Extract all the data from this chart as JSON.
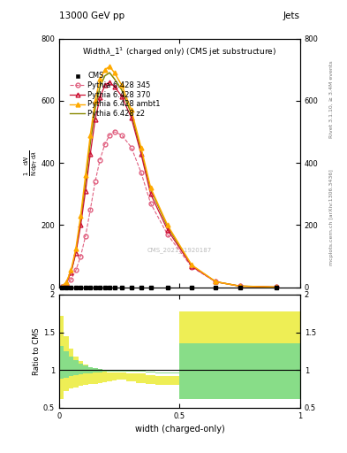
{
  "title_top": "13000 GeV pp",
  "title_right": "Jets",
  "plot_title": "Widthλ_1¹ (charged only) (CMS jet substructure)",
  "xlabel": "width (charged-only)",
  "ylabel_lines": [
    "mathrm d²N",
    "mathrm d p_T mathrm dλ"
  ],
  "ylabel_ratio": "Ratio to CMS",
  "right_label_top": "Rivet 3.1.10, ≥ 3.4M events",
  "right_label_bot": "mcplots.cern.ch [arXiv:1306.3436]",
  "watermark": "CMS_2021_I1920187",
  "x_bins": [
    0.0,
    0.02,
    0.04,
    0.06,
    0.08,
    0.1,
    0.12,
    0.14,
    0.16,
    0.18,
    0.2,
    0.22,
    0.24,
    0.28,
    0.32,
    0.36,
    0.4,
    0.5,
    0.6,
    0.7,
    0.8,
    1.0
  ],
  "cms_data_y": [
    0.0,
    0.0,
    0.0,
    0.0,
    0.0,
    0.0,
    0.0,
    0.0,
    0.0,
    0.0,
    0.0,
    0.0,
    0.0,
    0.0,
    0.0,
    0.0,
    0.0,
    0.0,
    0.0,
    0.0,
    0.0
  ],
  "p6_345": [
    1.5,
    8,
    25,
    55,
    100,
    165,
    250,
    340,
    410,
    460,
    490,
    500,
    490,
    450,
    370,
    270,
    170,
    65,
    18,
    4,
    0.8
  ],
  "p6_370": [
    2,
    14,
    48,
    110,
    200,
    310,
    430,
    540,
    610,
    650,
    660,
    645,
    615,
    545,
    430,
    300,
    185,
    68,
    18,
    4,
    0.8
  ],
  "p6_ambt1": [
    2,
    16,
    55,
    125,
    230,
    360,
    490,
    600,
    670,
    700,
    710,
    690,
    650,
    570,
    450,
    320,
    200,
    72,
    18,
    4,
    0.8
  ],
  "p6_z2": [
    2,
    14,
    50,
    115,
    215,
    340,
    465,
    575,
    645,
    680,
    690,
    670,
    635,
    558,
    440,
    315,
    195,
    70,
    18,
    4,
    0.8
  ],
  "ratio_yellow_lo": [
    0.62,
    0.72,
    0.75,
    0.77,
    0.79,
    0.8,
    0.81,
    0.82,
    0.83,
    0.84,
    0.85,
    0.86,
    0.87,
    0.85,
    0.83,
    0.82,
    0.8,
    0.62,
    0.62,
    0.62,
    0.62
  ],
  "ratio_yellow_hi": [
    1.72,
    1.45,
    1.28,
    1.18,
    1.12,
    1.07,
    1.04,
    1.02,
    1.0,
    0.98,
    0.97,
    0.97,
    0.97,
    0.96,
    0.95,
    0.93,
    0.92,
    1.78,
    1.78,
    1.78,
    1.78
  ],
  "ratio_green_lo": [
    0.88,
    0.9,
    0.92,
    0.93,
    0.94,
    0.95,
    0.96,
    0.97,
    0.97,
    0.98,
    0.98,
    0.98,
    0.98,
    0.98,
    0.98,
    0.97,
    0.96,
    0.62,
    0.62,
    0.62,
    0.62
  ],
  "ratio_green_hi": [
    1.32,
    1.25,
    1.18,
    1.13,
    1.09,
    1.06,
    1.04,
    1.02,
    1.01,
    1.0,
    0.99,
    0.99,
    0.99,
    0.99,
    0.99,
    0.98,
    0.97,
    1.35,
    1.35,
    1.35,
    1.35
  ],
  "cms_color": "#000000",
  "p345_color": "#e06080",
  "p370_color": "#cc1133",
  "pambt1_color": "#ffaa00",
  "pz2_color": "#888800",
  "ratio_yellow_color": "#eeee55",
  "ratio_green_color": "#88dd88",
  "bg_color": "#ffffff",
  "xlim": [
    0.0,
    1.0
  ],
  "ylim_main": [
    0,
    800
  ],
  "ylim_ratio": [
    0.5,
    2.0
  ],
  "yticks_main": [
    0,
    200,
    400,
    600,
    800
  ],
  "ytick_labels_main": [
    "0",
    "200",
    "400",
    "600",
    "800"
  ],
  "yticks_ratio": [
    0.5,
    1.0,
    1.5,
    2.0
  ],
  "ytick_labels_ratio": [
    "0.5",
    "1",
    "1.5",
    "2"
  ],
  "xticks": [
    0,
    0.5,
    1.0
  ],
  "xtick_labels": [
    "0",
    "0.5",
    "1"
  ]
}
